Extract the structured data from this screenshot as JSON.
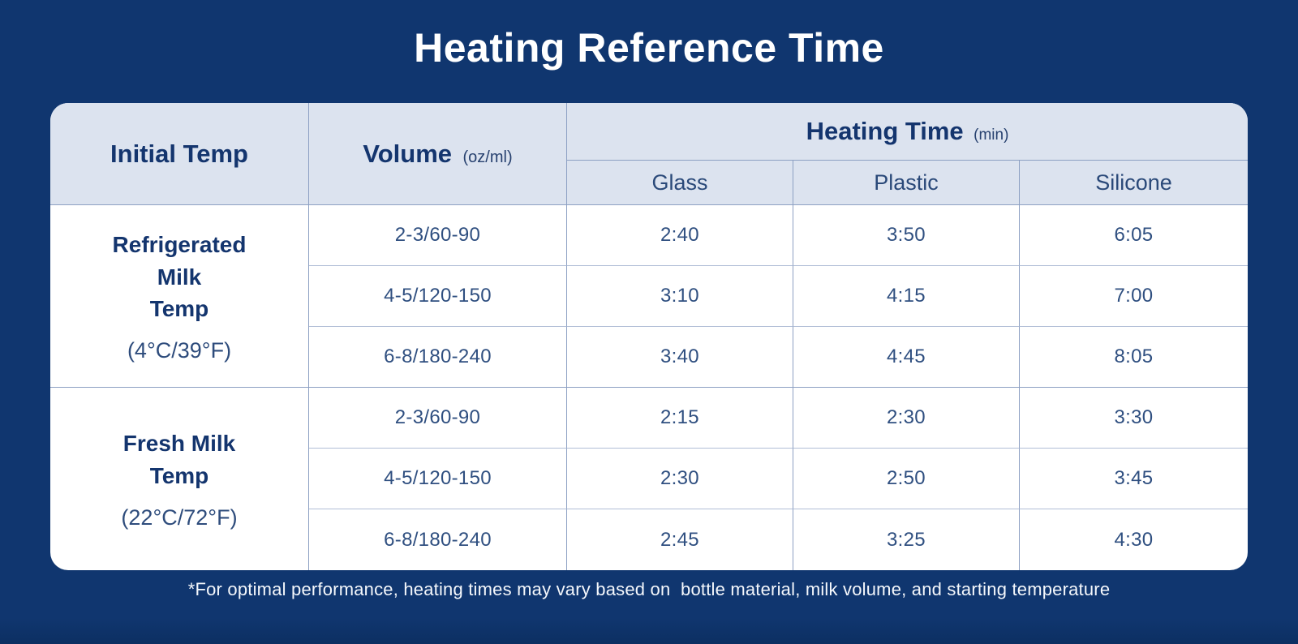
{
  "page": {
    "title": "Heating Reference Time"
  },
  "table": {
    "header": {
      "initial_temp": "Initial Temp",
      "volume_label": "Volume",
      "volume_unit": "(oz/ml)",
      "heating_time_label": "Heating Time",
      "heating_time_unit": "(min)",
      "materials": [
        "Glass",
        "Plastic",
        "Silicone"
      ]
    },
    "sections": [
      {
        "label_lines": [
          "Refrigerated",
          "Milk",
          "Temp"
        ],
        "temp": "(4°C/39°F)",
        "rows": [
          {
            "volume": "2-3/60-90",
            "glass": "2:40",
            "plastic": "3:50",
            "silicone": "6:05"
          },
          {
            "volume": "4-5/120-150",
            "glass": "3:10",
            "plastic": "4:15",
            "silicone": "7:00"
          },
          {
            "volume": "6-8/180-240",
            "glass": "3:40",
            "plastic": "4:45",
            "silicone": "8:05"
          }
        ]
      },
      {
        "label_lines": [
          "Fresh Milk",
          "Temp"
        ],
        "temp": "(22°C/72°F)",
        "rows": [
          {
            "volume": "2-3/60-90",
            "glass": "2:15",
            "plastic": "2:30",
            "silicone": "3:30"
          },
          {
            "volume": "4-5/120-150",
            "glass": "2:30",
            "plastic": "2:50",
            "silicone": "3:45"
          },
          {
            "volume": "6-8/180-240",
            "glass": "2:45",
            "plastic": "3:25",
            "silicone": "4:30"
          }
        ]
      }
    ]
  },
  "footnote": "*For optimal performance, heating times may vary based on  bottle material, milk volume, and starting temperature",
  "colors": {
    "background": "#10366f",
    "table_header_bg": "#dce3ef",
    "table_body_bg": "#ffffff",
    "heading_text": "#14356e",
    "data_text": "#2f4f80",
    "title_text": "#ffffff",
    "border_vertical": "#8da0c3",
    "border_horizontal": "#b1bed6"
  },
  "chart_data": {
    "type": "table",
    "title": "Heating Reference Time",
    "columns": [
      "Initial Temp",
      "Volume (oz/ml)",
      "Heating Time (min) - Glass",
      "Heating Time (min) - Plastic",
      "Heating Time (min) - Silicone"
    ],
    "rows": [
      [
        "Refrigerated Milk Temp (4°C/39°F)",
        "2-3/60-90",
        "2:40",
        "3:50",
        "6:05"
      ],
      [
        "Refrigerated Milk Temp (4°C/39°F)",
        "4-5/120-150",
        "3:10",
        "4:15",
        "7:00"
      ],
      [
        "Refrigerated Milk Temp (4°C/39°F)",
        "6-8/180-240",
        "3:40",
        "4:45",
        "8:05"
      ],
      [
        "Fresh Milk Temp (22°C/72°F)",
        "2-3/60-90",
        "2:15",
        "2:30",
        "3:30"
      ],
      [
        "Fresh Milk Temp (22°C/72°F)",
        "4-5/120-150",
        "2:30",
        "2:50",
        "3:45"
      ],
      [
        "Fresh Milk Temp (22°C/72°F)",
        "6-8/180-240",
        "2:45",
        "3:25",
        "4:30"
      ]
    ],
    "footnote": "*For optimal performance, heating times may vary based on bottle material, milk volume, and starting temperature"
  }
}
